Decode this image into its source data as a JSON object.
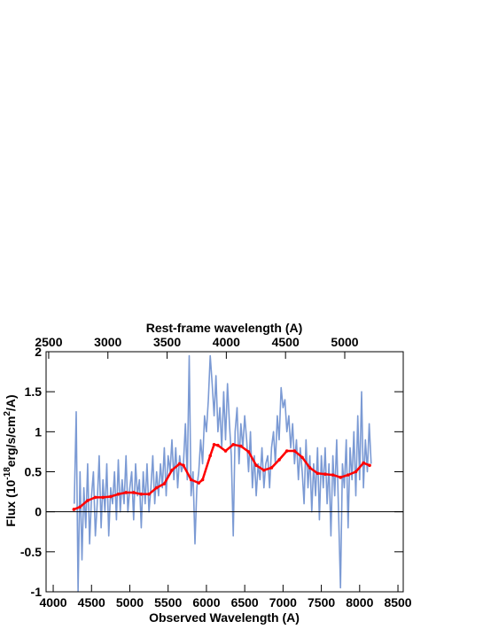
{
  "chart_data": {
    "type": "line",
    "xlabel": "Observed Wavelength (A)",
    "x2label": "Rest-frame wavelength (A)",
    "ylabel_parts": [
      "Flux (10",
      "-18",
      "erg/s/cm",
      "2",
      "/A)"
    ],
    "xlim": [
      3907,
      8569
    ],
    "xticks": [
      4000,
      4500,
      5000,
      5500,
      6000,
      6500,
      7000,
      7500,
      8000,
      8500
    ],
    "x2lim": [
      2478,
      5494
    ],
    "x2ticks": [
      2500,
      3000,
      3500,
      4000,
      4500,
      5000
    ],
    "ylim": [
      -1,
      2
    ],
    "yticks": [
      -1,
      -0.5,
      0,
      0.5,
      1,
      1.5,
      2
    ],
    "hline": 0,
    "series": [
      {
        "color": "#7b9ad4",
        "marker": false,
        "x": [
          4275,
          4300,
          4325,
          4350,
          4375,
          4400,
          4425,
          4450,
          4475,
          4500,
          4525,
          4550,
          4575,
          4600,
          4625,
          4650,
          4675,
          4700,
          4725,
          4750,
          4775,
          4800,
          4825,
          4850,
          4875,
          4900,
          4925,
          4950,
          4975,
          5000,
          5025,
          5050,
          5075,
          5100,
          5125,
          5150,
          5175,
          5200,
          5225,
          5250,
          5275,
          5300,
          5325,
          5350,
          5375,
          5400,
          5425,
          5450,
          5475,
          5500,
          5525,
          5550,
          5575,
          5600,
          5625,
          5650,
          5675,
          5700,
          5725,
          5750,
          5775,
          5800,
          5825,
          5850,
          5875,
          5900,
          5925,
          5950,
          5975,
          6000,
          6025,
          6050,
          6075,
          6100,
          6125,
          6150,
          6175,
          6200,
          6225,
          6250,
          6275,
          6300,
          6325,
          6350,
          6375,
          6400,
          6425,
          6450,
          6475,
          6500,
          6525,
          6550,
          6575,
          6600,
          6625,
          6650,
          6675,
          6700,
          6725,
          6750,
          6775,
          6800,
          6825,
          6850,
          6875,
          6900,
          6925,
          6950,
          6975,
          7000,
          7025,
          7050,
          7075,
          7100,
          7125,
          7150,
          7175,
          7200,
          7225,
          7250,
          7275,
          7300,
          7325,
          7350,
          7375,
          7400,
          7425,
          7450,
          7475,
          7500,
          7525,
          7550,
          7575,
          7600,
          7625,
          7650,
          7675,
          7700,
          7725,
          7750,
          7775,
          7800,
          7825,
          7850,
          7875,
          7900,
          7925,
          7950,
          7975,
          8000,
          8025,
          8050,
          8075,
          8100,
          8125,
          8150
        ],
        "values": [
          0.1,
          1.25,
          -1.0,
          0.5,
          -0.6,
          0.3,
          -0.2,
          0.6,
          -0.4,
          0.2,
          0.5,
          -0.3,
          0.1,
          0.7,
          -0.2,
          0.4,
          0.0,
          0.6,
          -0.3,
          0.3,
          0.1,
          0.5,
          -0.1,
          0.65,
          0.0,
          0.4,
          0.1,
          0.7,
          0.0,
          0.3,
          0.5,
          -0.1,
          0.6,
          0.2,
          0.4,
          -0.2,
          0.5,
          0.1,
          0.6,
          0.0,
          0.3,
          0.7,
          0.1,
          0.5,
          0.2,
          0.6,
          0.3,
          0.8,
          0.2,
          0.7,
          0.5,
          0.9,
          0.4,
          0.8,
          0.3,
          0.7,
          0.5,
          0.6,
          1.1,
          0.4,
          1.95,
          0.2,
          0.5,
          -0.4,
          0.3,
          0.5,
          0.9,
          0.6,
          1.2,
          1.0,
          1.4,
          1.95,
          1.6,
          1.2,
          1.7,
          1.0,
          1.3,
          0.8,
          1.5,
          0.9,
          1.6,
          1.1,
          0.7,
          -0.3,
          1.0,
          1.3,
          0.6,
          1.1,
          0.8,
          1.2,
          0.9,
          0.5,
          1.0,
          0.3,
          0.7,
          0.2,
          0.6,
          0.4,
          0.8,
          0.3,
          0.6,
          0.7,
          0.3,
          0.8,
          1.0,
          0.6,
          1.2,
          0.9,
          1.55,
          1.3,
          1.4,
          1.0,
          1.2,
          0.8,
          1.1,
          0.6,
          0.9,
          0.4,
          0.8,
          0.5,
          0.1,
          0.9,
          0.3,
          0.7,
          0.0,
          0.6,
          0.2,
          0.8,
          -0.1,
          0.7,
          0.3,
          0.8,
          0.1,
          0.6,
          -0.3,
          0.7,
          0.2,
          0.9,
          0.0,
          -0.95,
          0.6,
          0.3,
          0.9,
          -0.2,
          0.8,
          0.4,
          1.0,
          0.2,
          1.2,
          0.4,
          1.5,
          0.3,
          0.9,
          0.5,
          1.1,
          0.6
        ]
      },
      {
        "color": "#ff0000",
        "marker": true,
        "x": [
          4270,
          4350,
          4450,
          4550,
          4650,
          4750,
          4850,
          4950,
          5050,
          5150,
          5250,
          5350,
          5450,
          5550,
          5650,
          5700,
          5800,
          5900,
          5950,
          6050,
          6100,
          6150,
          6250,
          6350,
          6450,
          6550,
          6650,
          6750,
          6850,
          6950,
          7050,
          7150,
          7250,
          7350,
          7450,
          7550,
          7650,
          7750,
          7850,
          7950,
          8050,
          8130
        ],
        "values": [
          0.03,
          0.06,
          0.14,
          0.18,
          0.18,
          0.19,
          0.22,
          0.24,
          0.24,
          0.22,
          0.22,
          0.3,
          0.35,
          0.52,
          0.6,
          0.58,
          0.4,
          0.36,
          0.4,
          0.7,
          0.84,
          0.83,
          0.76,
          0.84,
          0.82,
          0.75,
          0.58,
          0.52,
          0.55,
          0.65,
          0.76,
          0.76,
          0.68,
          0.55,
          0.48,
          0.47,
          0.46,
          0.43,
          0.46,
          0.5,
          0.61,
          0.58
        ]
      }
    ]
  }
}
